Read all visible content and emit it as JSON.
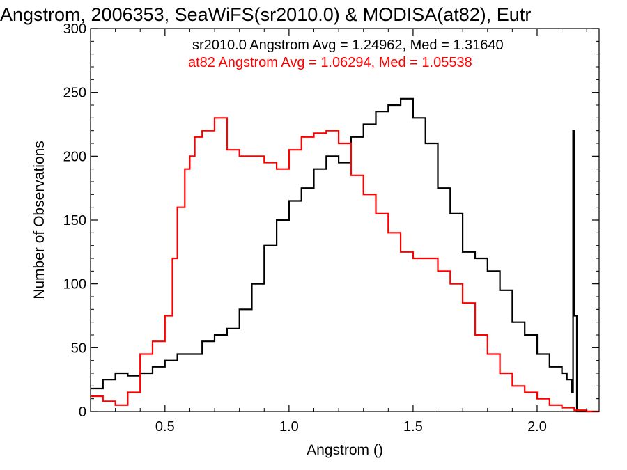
{
  "chart_data": {
    "type": "line",
    "title": "Angstrom, 2006353, SeaWiFS(sr2010.0) & MODISA(at82), Eutr",
    "xlabel": "Angstrom ()",
    "ylabel": "Number of Observations",
    "xlim": [
      0.2,
      2.25
    ],
    "ylim": [
      0,
      300
    ],
    "x_ticks": [
      0.5,
      1.0,
      1.5,
      2.0
    ],
    "x_tick_labels": [
      "0.5",
      "1.0",
      "1.5",
      "2.0"
    ],
    "y_ticks": [
      0,
      50,
      100,
      150,
      200,
      250,
      300
    ],
    "y_tick_labels": [
      "0",
      "50",
      "100",
      "150",
      "200",
      "250",
      "300"
    ],
    "grid": false,
    "annotations": [
      {
        "text": "sr2010.0 Angstrom Avg = 1.24962, Med = 1.31640",
        "color": "#000000"
      },
      {
        "text": "at82 Angstrom Avg = 1.06294, Med = 1.05538",
        "color": "#ff0000"
      }
    ],
    "series": [
      {
        "color": "#000000",
        "x": [
          0.2,
          0.25,
          0.3,
          0.35,
          0.4,
          0.45,
          0.5,
          0.55,
          0.6,
          0.65,
          0.7,
          0.75,
          0.8,
          0.85,
          0.9,
          0.95,
          1.0,
          1.05,
          1.1,
          1.15,
          1.2,
          1.25,
          1.3,
          1.35,
          1.4,
          1.45,
          1.5,
          1.55,
          1.6,
          1.65,
          1.7,
          1.75,
          1.8,
          1.85,
          1.9,
          1.95,
          2.0,
          2.05,
          2.1,
          2.12,
          2.14,
          2.145,
          2.15,
          2.16,
          2.2,
          2.25
        ],
        "y": [
          18,
          25,
          30,
          28,
          30,
          35,
          40,
          45,
          45,
          55,
          60,
          65,
          80,
          100,
          130,
          150,
          165,
          175,
          190,
          200,
          195,
          215,
          225,
          235,
          240,
          245,
          230,
          210,
          175,
          155,
          125,
          120,
          110,
          95,
          70,
          60,
          45,
          35,
          30,
          25,
          15,
          220,
          75,
          0,
          0,
          0
        ]
      },
      {
        "color": "#ff0000",
        "x": [
          0.2,
          0.25,
          0.3,
          0.35,
          0.4,
          0.45,
          0.5,
          0.53,
          0.55,
          0.58,
          0.6,
          0.62,
          0.65,
          0.7,
          0.75,
          0.8,
          0.85,
          0.9,
          0.95,
          1.0,
          1.05,
          1.1,
          1.15,
          1.2,
          1.25,
          1.3,
          1.35,
          1.4,
          1.45,
          1.5,
          1.55,
          1.6,
          1.65,
          1.7,
          1.75,
          1.8,
          1.85,
          1.9,
          1.95,
          2.0,
          2.05,
          2.1,
          2.15,
          2.2,
          2.25
        ],
        "y": [
          12,
          8,
          5,
          15,
          45,
          55,
          75,
          120,
          160,
          190,
          200,
          215,
          220,
          230,
          205,
          200,
          200,
          195,
          190,
          205,
          215,
          218,
          220,
          210,
          185,
          170,
          155,
          140,
          125,
          120,
          120,
          110,
          100,
          85,
          60,
          45,
          30,
          20,
          15,
          10,
          5,
          3,
          1,
          0,
          0
        ]
      }
    ]
  }
}
